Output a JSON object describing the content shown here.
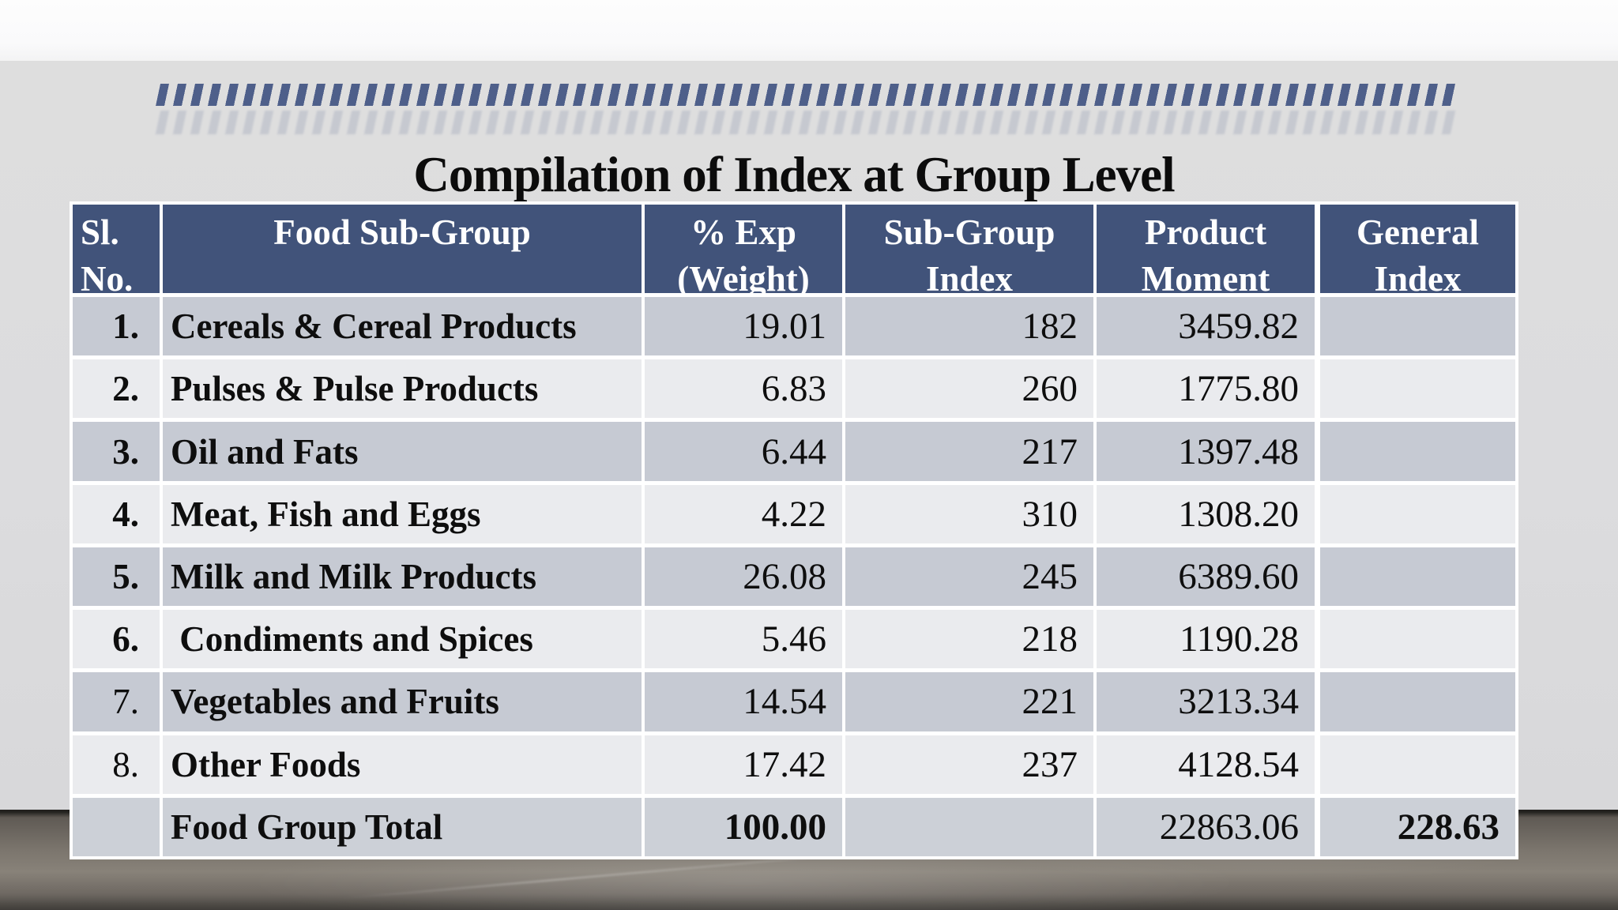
{
  "colors": {
    "header_bg": "#41537a",
    "header_text": "#ffffff",
    "row_dark": "#c6cad3",
    "row_light": "#eaebee",
    "total_row_bg": "#ccd0d7",
    "dash_accent": "#4e5f8a",
    "slide_bg": "#dcdcde",
    "floor": "#7b756d",
    "text": "#0e0e0e"
  },
  "decoration": {
    "dash_strip_icon": "slanted-dash-strip"
  },
  "title": {
    "prefix": "Compilation of Index at ",
    "emphasis": "Group Level"
  },
  "table": {
    "columns": [
      {
        "label": "Sl.\nNo."
      },
      {
        "label": "Food Sub-Group"
      },
      {
        "label": "% Exp\n(Weight)"
      },
      {
        "label": "Sub-Group\nIndex"
      },
      {
        "label": "Product\nMoment"
      },
      {
        "label": "General\nIndex"
      }
    ],
    "rows": [
      {
        "sl": "1.",
        "sl_bold": true,
        "name": "Cereals & Cereal Products",
        "weight": "19.01",
        "index": "182",
        "moment": "3459.82",
        "general": ""
      },
      {
        "sl": "2.",
        "sl_bold": true,
        "name": "Pulses & Pulse Products",
        "weight": "6.83",
        "index": "260",
        "moment": "1775.80",
        "general": ""
      },
      {
        "sl": "3.",
        "sl_bold": true,
        "name": "Oil and Fats",
        "weight": "6.44",
        "index": "217",
        "moment": "1397.48",
        "general": ""
      },
      {
        "sl": "4.",
        "sl_bold": true,
        "name": "Meat, Fish and Eggs",
        "weight": "4.22",
        "index": "310",
        "moment": "1308.20",
        "general": ""
      },
      {
        "sl": "5.",
        "sl_bold": true,
        "name": "Milk and Milk Products",
        "weight": "26.08",
        "index": "245",
        "moment": "6389.60",
        "general": ""
      },
      {
        "sl": "6.",
        "sl_bold": true,
        "name": " Condiments and Spices",
        "weight": "5.46",
        "index": "218",
        "moment": "1190.28",
        "general": ""
      },
      {
        "sl": "7.",
        "sl_bold": false,
        "name": "Vegetables and Fruits",
        "weight": "14.54",
        "index": "221",
        "moment": "3213.34",
        "general": ""
      },
      {
        "sl": "8.",
        "sl_bold": false,
        "name": "Other Foods",
        "weight": "17.42",
        "index": "237",
        "moment": "4128.54",
        "general": ""
      }
    ],
    "total": {
      "sl": "",
      "name": "Food Group Total",
      "weight": "100.00",
      "index": "",
      "moment": "22863.06",
      "general": "228.63"
    }
  }
}
